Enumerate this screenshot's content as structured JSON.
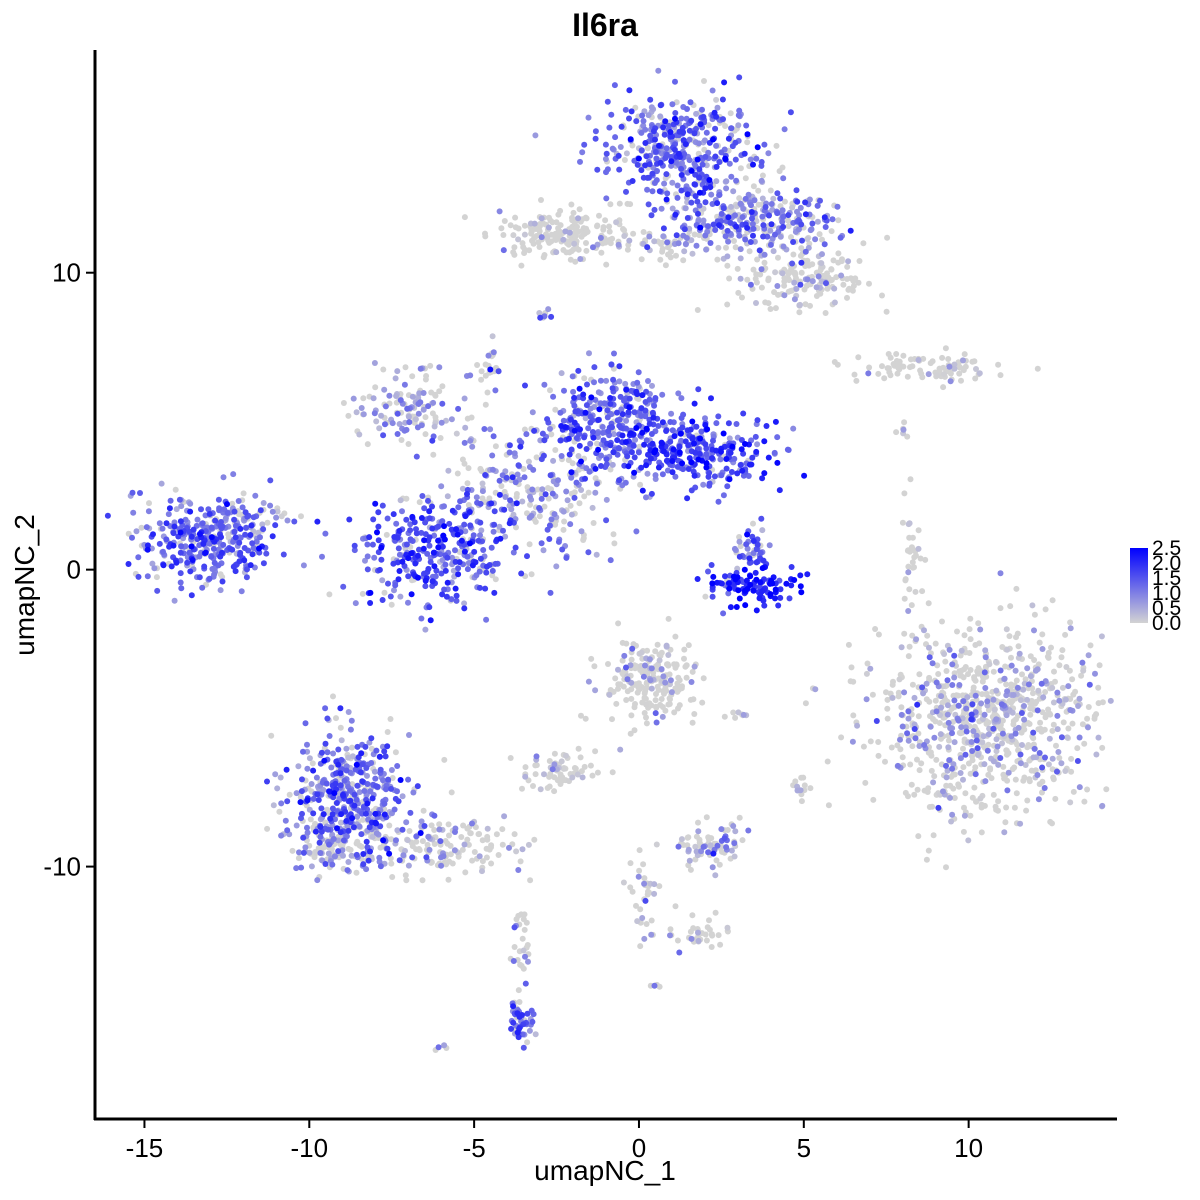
{
  "chart_data": {
    "type": "scatter",
    "title": "Il6ra",
    "xlabel": "umapNC_1",
    "ylabel": "umapNC_2",
    "xlim": [
      -16.5,
      14.5
    ],
    "ylim": [
      -18.5,
      17.5
    ],
    "x_ticks": [
      -15,
      -10,
      -5,
      0,
      5,
      10
    ],
    "x_tick_labels": [
      "-15",
      "-10",
      "-5",
      "0",
      "5",
      "10"
    ],
    "y_ticks": [
      -10,
      0,
      10
    ],
    "y_tick_labels": [
      "-10",
      "0",
      "10"
    ],
    "grid": false,
    "legend_position": "right",
    "color_scale": {
      "low": "#d3d3d3",
      "high": "#0000ff",
      "min": 0.0,
      "max": 2.5,
      "ticks": [
        2.5,
        2.0,
        1.5,
        1.0,
        0.5,
        0.0
      ],
      "tick_labels": [
        "2.5",
        "2.0",
        "1.5",
        "1.0",
        "0.5",
        "0.0"
      ]
    },
    "clusters": [
      {
        "cx": 1.3,
        "cy": 14.2,
        "sx": 1.1,
        "sy": 0.9,
        "n": 420,
        "expr": 1.3
      },
      {
        "cx": 3.5,
        "cy": 11.8,
        "sx": 1.3,
        "sy": 0.6,
        "n": 300,
        "expr": 1.0
      },
      {
        "cx": 5.0,
        "cy": 9.8,
        "sx": 1.0,
        "sy": 0.5,
        "n": 160,
        "expr": 0.15
      },
      {
        "cx": -2.4,
        "cy": 11.3,
        "sx": 1.0,
        "sy": 0.4,
        "n": 170,
        "expr": 0.05
      },
      {
        "cx": 0.3,
        "cy": 11.0,
        "sx": 1.0,
        "sy": 0.25,
        "n": 60,
        "expr": 0.3
      },
      {
        "cx": -13.2,
        "cy": 1.0,
        "sx": 1.1,
        "sy": 0.8,
        "n": 330,
        "expr": 1.3
      },
      {
        "cx": -11.8,
        "cy": 1.7,
        "sx": 0.5,
        "sy": 0.4,
        "n": 50,
        "expr": 0.6
      },
      {
        "cx": -7.0,
        "cy": 5.4,
        "sx": 0.9,
        "sy": 0.6,
        "n": 130,
        "expr": 0.7
      },
      {
        "cx": -6.2,
        "cy": 0.5,
        "sx": 1.2,
        "sy": 0.9,
        "n": 330,
        "expr": 1.5
      },
      {
        "cx": -1.0,
        "cy": 5.0,
        "sx": 1.0,
        "sy": 0.9,
        "n": 300,
        "expr": 1.3
      },
      {
        "cx": 1.7,
        "cy": 4.0,
        "sx": 1.2,
        "sy": 0.6,
        "n": 300,
        "expr": 1.6
      },
      {
        "cx": -3.2,
        "cy": 2.6,
        "sx": 1.3,
        "sy": 1.1,
        "n": 260,
        "expr": 0.9
      },
      {
        "cx": -4.5,
        "cy": 6.8,
        "sx": 0.2,
        "sy": 0.5,
        "n": 25,
        "expr": 0.5
      },
      {
        "cx": 3.3,
        "cy": -0.5,
        "sx": 0.7,
        "sy": 0.35,
        "n": 110,
        "expr": 2.0
      },
      {
        "cx": 3.4,
        "cy": 0.8,
        "sx": 0.3,
        "sy": 0.5,
        "n": 45,
        "expr": 1.2
      },
      {
        "cx": 10.5,
        "cy": -5.0,
        "sx": 1.7,
        "sy": 1.6,
        "n": 850,
        "expr": 0.45
      },
      {
        "cx": 8.3,
        "cy": 0.4,
        "sx": 0.15,
        "sy": 0.7,
        "n": 30,
        "expr": 0.05
      },
      {
        "cx": 8.6,
        "cy": 6.8,
        "sx": 1.1,
        "sy": 0.25,
        "n": 90,
        "expr": 0.15
      },
      {
        "cx": -8.7,
        "cy": -7.5,
        "sx": 0.9,
        "sy": 1.0,
        "n": 420,
        "expr": 1.2
      },
      {
        "cx": -9.3,
        "cy": -9.2,
        "sx": 0.7,
        "sy": 0.5,
        "n": 130,
        "expr": 0.8
      },
      {
        "cx": -6.0,
        "cy": -9.3,
        "sx": 1.3,
        "sy": 0.5,
        "n": 160,
        "expr": 0.4
      },
      {
        "cx": -3.6,
        "cy": -15.2,
        "sx": 0.2,
        "sy": 0.5,
        "n": 45,
        "expr": 1.3
      },
      {
        "cx": -3.6,
        "cy": -12.5,
        "sx": 0.2,
        "sy": 0.6,
        "n": 25,
        "expr": 0.1
      },
      {
        "cx": 0.4,
        "cy": -3.8,
        "sx": 0.7,
        "sy": 0.7,
        "n": 200,
        "expr": 0.2
      },
      {
        "cx": -2.4,
        "cy": -6.8,
        "sx": 0.6,
        "sy": 0.3,
        "n": 65,
        "expr": 0.2
      },
      {
        "cx": 2.2,
        "cy": -9.3,
        "sx": 0.5,
        "sy": 0.4,
        "n": 75,
        "expr": 0.5
      },
      {
        "cx": 0.2,
        "cy": -11.0,
        "sx": 0.3,
        "sy": 0.7,
        "n": 35,
        "expr": 0.3
      },
      {
        "cx": 1.8,
        "cy": -12.3,
        "sx": 0.7,
        "sy": 0.3,
        "n": 35,
        "expr": 0.4
      },
      {
        "cx": 5.0,
        "cy": -7.3,
        "sx": 0.15,
        "sy": 0.2,
        "n": 12,
        "expr": 0.6
      },
      {
        "cx": 3.2,
        "cy": -4.9,
        "sx": 0.3,
        "sy": 0.1,
        "n": 8,
        "expr": 0.2
      },
      {
        "cx": -2.9,
        "cy": 8.6,
        "sx": 0.2,
        "sy": 0.3,
        "n": 8,
        "expr": 0.8
      },
      {
        "cx": -6.1,
        "cy": -16.0,
        "sx": 0.15,
        "sy": 0.1,
        "n": 5,
        "expr": 0.8
      },
      {
        "cx": 8.0,
        "cy": 4.7,
        "sx": 0.2,
        "sy": 0.3,
        "n": 6,
        "expr": 0.3
      },
      {
        "cx": 0.6,
        "cy": -14.0,
        "sx": 0.1,
        "sy": 0.1,
        "n": 4,
        "expr": 0.6
      }
    ]
  }
}
